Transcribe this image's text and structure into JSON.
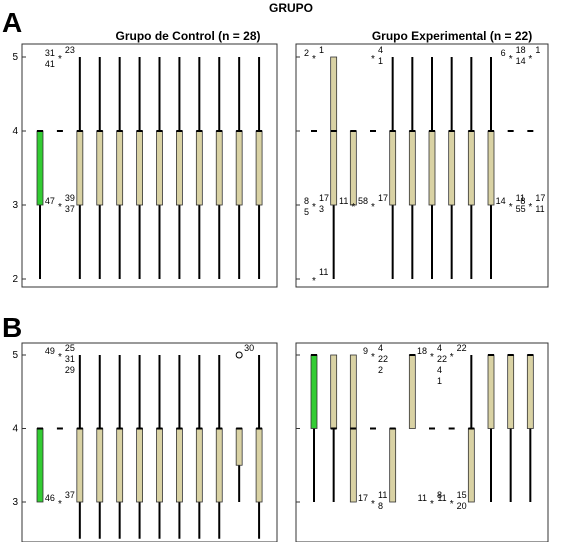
{
  "figure_title": "GRUPO",
  "colors": {
    "box_fill": "#d9d2a4",
    "box_highlight": "#33cc33",
    "frame": "#333333",
    "background": "#ffffff"
  },
  "chart_data": [
    {
      "type": "boxplot",
      "panel": "A",
      "title": "Grupo de Control (n = 28)",
      "ylim": [
        1.8,
        5.3
      ],
      "yticks": [
        2,
        3,
        4,
        5
      ],
      "grid": false,
      "boxes": [
        {
          "min": 2,
          "q1": 3,
          "median": 4,
          "q3": 4,
          "max": 4,
          "highlight": true
        },
        {
          "dash": true,
          "value": 4
        },
        {
          "min": 2,
          "q1": 3,
          "median": 4,
          "q3": 4,
          "max": 5
        },
        {
          "min": 2,
          "q1": 3,
          "median": 4,
          "q3": 4,
          "max": 5
        },
        {
          "min": 2,
          "q1": 3,
          "median": 4,
          "q3": 4,
          "max": 5
        },
        {
          "min": 2,
          "q1": 3,
          "median": 4,
          "q3": 4,
          "max": 5
        },
        {
          "min": 2,
          "q1": 3,
          "median": 4,
          "q3": 4,
          "max": 5
        },
        {
          "min": 2,
          "q1": 3,
          "median": 4,
          "q3": 4,
          "max": 5
        },
        {
          "min": 2,
          "q1": 3,
          "median": 4,
          "q3": 4,
          "max": 5
        },
        {
          "min": 2,
          "q1": 3,
          "median": 4,
          "q3": 4,
          "max": 5
        },
        {
          "min": 2,
          "q1": 3,
          "median": 4,
          "q3": 4,
          "max": 5
        },
        {
          "min": 2,
          "q1": 3,
          "median": 4,
          "q3": 4,
          "max": 5
        }
      ],
      "outliers": [
        {
          "box": 1,
          "y": 5,
          "symbol": "*",
          "labels": [
            "31",
            "41"
          ],
          "labels_right": [
            "23"
          ]
        },
        {
          "box": 1,
          "y": 3,
          "symbol": "*",
          "labels": [
            "47"
          ],
          "labels_right": [
            "39",
            "37"
          ]
        }
      ]
    },
    {
      "type": "boxplot",
      "panel": "A",
      "title": "Grupo Experimental (n = 22)",
      "ylim": [
        1.8,
        5.3
      ],
      "yticks": [
        2,
        3,
        4,
        5
      ],
      "grid": false,
      "boxes": [
        {
          "dash": true,
          "value": 4
        },
        {
          "min": 2,
          "q1": 3,
          "median": 4,
          "q3": 5,
          "max": 5
        },
        {
          "min": 3,
          "q1": 3,
          "median": 4,
          "q3": 4,
          "max": 4
        },
        {
          "dash": true,
          "value": 4
        },
        {
          "min": 2,
          "q1": 3,
          "median": 4,
          "q3": 4,
          "max": 5
        },
        {
          "min": 2,
          "q1": 3,
          "median": 4,
          "q3": 4,
          "max": 5
        },
        {
          "min": 2,
          "q1": 3,
          "median": 4,
          "q3": 4,
          "max": 5
        },
        {
          "min": 2,
          "q1": 3,
          "median": 4,
          "q3": 4,
          "max": 5
        },
        {
          "min": 2,
          "q1": 3,
          "median": 4,
          "q3": 4,
          "max": 5
        },
        {
          "min": 2,
          "q1": 3,
          "median": 4,
          "q3": 4,
          "max": 5
        },
        {
          "dash": true,
          "value": 4
        },
        {
          "dash": true,
          "value": 4
        }
      ],
      "outliers": [
        {
          "box": 0,
          "y": 5,
          "symbol": "*",
          "labels": [
            "2"
          ],
          "labels_right": [
            "1"
          ]
        },
        {
          "box": 0,
          "y": 3,
          "symbol": "*",
          "labels": [
            "8",
            "5"
          ],
          "labels_right": [
            "17",
            "3"
          ]
        },
        {
          "box": 0,
          "y": 2,
          "symbol": "*",
          "labels": [],
          "labels_right": [
            "11"
          ]
        },
        {
          "box": 2,
          "y": 3,
          "symbol": "*",
          "labels": [
            "11"
          ],
          "labels_right": []
        },
        {
          "box": 3,
          "y": 5,
          "symbol": "*",
          "labels": [],
          "labels_right": [
            "4",
            "1"
          ]
        },
        {
          "box": 3,
          "y": 3,
          "symbol": "*",
          "labels": [
            "58"
          ],
          "labels_right": [
            "17"
          ]
        },
        {
          "box": 10,
          "y": 5,
          "symbol": "*",
          "labels": [
            "6"
          ],
          "labels_right": [
            "18",
            "14"
          ]
        },
        {
          "box": 10,
          "y": 3,
          "symbol": "*",
          "labels": [
            "14"
          ],
          "labels_right": [
            "11",
            "55"
          ]
        },
        {
          "box": 11,
          "y": 5,
          "symbol": "*",
          "labels": [],
          "labels_right": [
            "1"
          ]
        },
        {
          "box": 11,
          "y": 3,
          "symbol": "*",
          "labels": [
            "8"
          ],
          "labels_right": [
            "17",
            "11"
          ]
        }
      ]
    },
    {
      "type": "boxplot",
      "panel": "B",
      "title": "",
      "ylim": [
        2.7,
        5.1
      ],
      "yticks": [
        3,
        4,
        5
      ],
      "grid": false,
      "boxes": [
        {
          "min": 3,
          "q1": 3,
          "median": 4,
          "q3": 4,
          "max": 4,
          "highlight": true
        },
        {
          "dash": true,
          "value": 4
        },
        {
          "min": 2.5,
          "q1": 3,
          "median": 4,
          "q3": 4,
          "max": 5
        },
        {
          "min": 2.5,
          "q1": 3,
          "median": 4,
          "q3": 4,
          "max": 5
        },
        {
          "min": 2.5,
          "q1": 3,
          "median": 4,
          "q3": 4,
          "max": 5
        },
        {
          "min": 2.5,
          "q1": 3,
          "median": 4,
          "q3": 4,
          "max": 5
        },
        {
          "min": 2.5,
          "q1": 3,
          "median": 4,
          "q3": 4,
          "max": 5
        },
        {
          "min": 2.5,
          "q1": 3,
          "median": 4,
          "q3": 4,
          "max": 5
        },
        {
          "min": 2.5,
          "q1": 3,
          "median": 4,
          "q3": 4,
          "max": 5
        },
        {
          "min": 2.5,
          "q1": 3,
          "median": 4,
          "q3": 4,
          "max": 5
        },
        {
          "min": 3,
          "q1": 3.5,
          "median": 4,
          "q3": 4,
          "max": 4
        },
        {
          "min": 2.5,
          "q1": 3,
          "median": 4,
          "q3": 4,
          "max": 5
        }
      ],
      "outliers": [
        {
          "box": 1,
          "y": 5,
          "symbol": "*",
          "labels": [
            "49"
          ],
          "labels_right": [
            "25",
            "31",
            "29"
          ]
        },
        {
          "box": 1,
          "y": 3,
          "symbol": "*",
          "labels": [
            "46"
          ],
          "labels_right": [
            "37"
          ]
        },
        {
          "box": 10,
          "y": 5,
          "symbol": "o",
          "labels": [],
          "labels_right": [
            "30"
          ]
        }
      ]
    },
    {
      "type": "boxplot",
      "panel": "B",
      "title": "",
      "ylim": [
        2.7,
        5.1
      ],
      "yticks": [
        3,
        4,
        5
      ],
      "grid": false,
      "boxes": [
        {
          "min": 3,
          "q1": 4,
          "median": 5,
          "q3": 5,
          "max": 5,
          "highlight": true
        },
        {
          "min": 3,
          "q1": 4,
          "median": 4,
          "q3": 5,
          "max": 5
        },
        {
          "min": 3,
          "q1": 3,
          "median": 4,
          "q3": 5,
          "max": 5
        },
        {
          "dash": true,
          "value": 4
        },
        {
          "min": 3,
          "q1": 3,
          "median": 4,
          "q3": 4,
          "max": 4
        },
        {
          "min": 4,
          "q1": 4,
          "median": 5,
          "q3": 5,
          "max": 5
        },
        {
          "dash": true,
          "value": 4
        },
        {
          "dash": true,
          "value": 4
        },
        {
          "min": 3,
          "q1": 3,
          "median": 4,
          "q3": 4,
          "max": 5
        },
        {
          "min": 3,
          "q1": 4,
          "median": 5,
          "q3": 5,
          "max": 5
        },
        {
          "min": 3,
          "q1": 4,
          "median": 5,
          "q3": 5,
          "max": 5
        },
        {
          "min": 3,
          "q1": 4,
          "median": 5,
          "q3": 5,
          "max": 5
        }
      ],
      "outliers": [
        {
          "box": 3,
          "y": 5,
          "symbol": "*",
          "labels": [
            "9"
          ],
          "labels_right": [
            "4",
            "22",
            "2"
          ]
        },
        {
          "box": 3,
          "y": 3,
          "symbol": "*",
          "labels": [
            "17"
          ],
          "labels_right": [
            "11",
            "8"
          ]
        },
        {
          "box": 6,
          "y": 5,
          "symbol": "*",
          "labels": [
            "18"
          ],
          "labels_right": [
            "4",
            "22",
            "4",
            "1"
          ]
        },
        {
          "box": 6,
          "y": 3,
          "symbol": "*",
          "labels": [
            "11"
          ],
          "labels_right": [
            "8"
          ]
        },
        {
          "box": 7,
          "y": 5,
          "symbol": "*",
          "labels": [],
          "labels_right": [
            "22"
          ]
        },
        {
          "box": 7,
          "y": 3,
          "symbol": "*",
          "labels": [
            "11"
          ],
          "labels_right": [
            "15",
            "20"
          ]
        }
      ]
    }
  ]
}
